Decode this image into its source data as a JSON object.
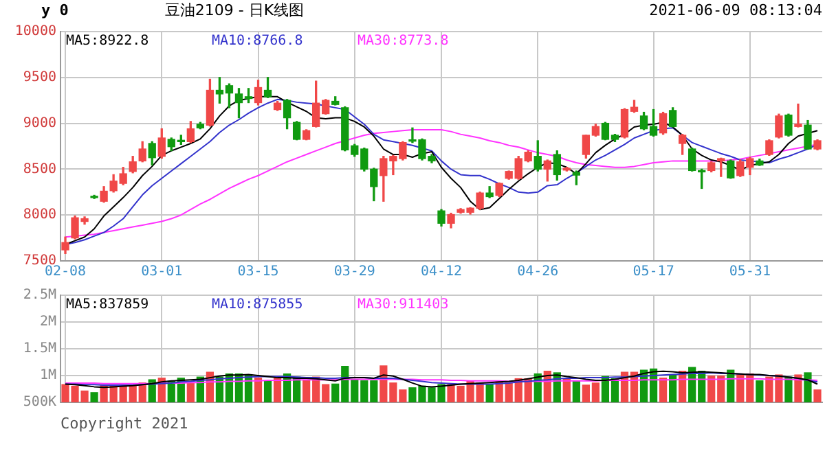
{
  "chart_data": [
    {
      "type": "candlestick",
      "title": "豆油2109 - 日K线图",
      "annotations": [
        "y 0",
        "2021-06-09 08:13:04"
      ],
      "categories": [
        "02-08",
        null,
        null,
        null,
        null,
        null,
        null,
        null,
        null,
        null,
        "03-01",
        null,
        null,
        null,
        null,
        null,
        null,
        null,
        null,
        null,
        "03-15",
        null,
        null,
        null,
        null,
        null,
        null,
        null,
        null,
        null,
        "03-29",
        null,
        null,
        null,
        null,
        null,
        null,
        null,
        null,
        "04-12",
        null,
        null,
        null,
        null,
        null,
        null,
        null,
        null,
        null,
        "04-26",
        null,
        null,
        null,
        null,
        null,
        null,
        null,
        null,
        null,
        null,
        null,
        "05-17",
        null,
        null,
        null,
        null,
        null,
        null,
        null,
        null,
        null,
        "05-31",
        null,
        null,
        null,
        null,
        null,
        null,
        null
      ],
      "ohlc": [
        [
          7620,
          7760,
          7580,
          7700
        ],
        [
          7750,
          7990,
          7740,
          7970
        ],
        [
          7930,
          7980,
          7900,
          7960
        ],
        [
          8200,
          8215,
          8180,
          8190
        ],
        [
          8150,
          8310,
          8140,
          8260
        ],
        [
          8265,
          8440,
          8250,
          8370
        ],
        [
          8345,
          8520,
          8330,
          8450
        ],
        [
          8475,
          8640,
          8460,
          8580
        ],
        [
          8590,
          8800,
          8580,
          8720
        ],
        [
          8780,
          8800,
          8545,
          8625
        ],
        [
          8640,
          8940,
          8620,
          8840
        ],
        [
          8825,
          8840,
          8700,
          8745
        ],
        [
          8815,
          8870,
          8770,
          8800
        ],
        [
          8800,
          9020,
          8790,
          8940
        ],
        [
          8990,
          9010,
          8940,
          8950
        ],
        [
          8980,
          9480,
          8970,
          9360
        ],
        [
          9360,
          9500,
          9220,
          9320
        ],
        [
          9410,
          9430,
          9170,
          9330
        ],
        [
          9320,
          9380,
          9060,
          9225
        ],
        [
          9290,
          9380,
          9225,
          9270
        ],
        [
          9225,
          9470,
          9200,
          9390
        ],
        [
          9360,
          9500,
          9280,
          9290
        ],
        [
          9150,
          9240,
          9140,
          9220
        ],
        [
          9250,
          9260,
          8940,
          9060
        ],
        [
          9010,
          9020,
          8820,
          8825
        ],
        [
          8825,
          8930,
          8820,
          8920
        ],
        [
          8965,
          9460,
          8960,
          9220
        ],
        [
          9105,
          9260,
          9100,
          9250
        ],
        [
          9240,
          9290,
          9200,
          9205
        ],
        [
          9170,
          9180,
          8700,
          8710
        ],
        [
          8755,
          8770,
          8640,
          8660
        ],
        [
          8720,
          8730,
          8480,
          8500
        ],
        [
          8500,
          8510,
          8155,
          8310
        ],
        [
          8430,
          8640,
          8150,
          8615
        ],
        [
          8590,
          8650,
          8440,
          8640
        ],
        [
          8615,
          8800,
          8600,
          8790
        ],
        [
          8820,
          8950,
          8790,
          8805
        ],
        [
          8820,
          8830,
          8600,
          8615
        ],
        [
          8640,
          8660,
          8570,
          8590
        ],
        [
          8045,
          8060,
          7880,
          7910
        ],
        [
          7910,
          8020,
          7860,
          8005
        ],
        [
          8030,
          8070,
          8020,
          8060
        ],
        [
          8030,
          8080,
          8010,
          8075
        ],
        [
          8075,
          8250,
          8060,
          8240
        ],
        [
          8240,
          8310,
          8190,
          8200
        ],
        [
          8215,
          8350,
          8200,
          8345
        ],
        [
          8400,
          8480,
          8390,
          8475
        ],
        [
          8400,
          8640,
          8390,
          8615
        ],
        [
          8590,
          8700,
          8580,
          8685
        ],
        [
          8640,
          8810,
          8480,
          8500
        ],
        [
          8500,
          8600,
          8370,
          8590
        ],
        [
          8660,
          8700,
          8380,
          8440
        ],
        [
          8490,
          8520,
          8480,
          8510
        ],
        [
          8465,
          8480,
          8330,
          8435
        ],
        [
          8660,
          8870,
          8620,
          8870
        ],
        [
          8870,
          8990,
          8860,
          8965
        ],
        [
          9000,
          9010,
          8820,
          8825
        ],
        [
          8870,
          8880,
          8800,
          8825
        ],
        [
          8850,
          9160,
          8840,
          9150
        ],
        [
          9130,
          9250,
          9120,
          9175
        ],
        [
          9080,
          9120,
          8930,
          8940
        ],
        [
          8965,
          9150,
          8860,
          8870
        ],
        [
          8895,
          9120,
          8880,
          9105
        ],
        [
          9140,
          9170,
          8960,
          8965
        ],
        [
          8780,
          8880,
          8660,
          8870
        ],
        [
          8720,
          8730,
          8480,
          8485
        ],
        [
          8475,
          8500,
          8290,
          8470
        ],
        [
          8485,
          8580,
          8470,
          8570
        ],
        [
          8590,
          8620,
          8420,
          8615
        ],
        [
          8590,
          8600,
          8400,
          8405
        ],
        [
          8430,
          8600,
          8420,
          8580
        ],
        [
          8520,
          8630,
          8440,
          8615
        ],
        [
          8590,
          8610,
          8540,
          8545
        ],
        [
          8660,
          8820,
          8650,
          8810
        ],
        [
          8850,
          9100,
          8840,
          9080
        ],
        [
          9090,
          9100,
          8860,
          8870
        ],
        [
          8965,
          9210,
          8960,
          8990
        ],
        [
          8980,
          9030,
          8720,
          8720
        ],
        [
          8720,
          8820,
          8710,
          8810
        ]
      ],
      "colors": [
        "#f04848",
        "#f04848",
        "#f04848",
        "#109a10",
        "#f04848",
        "#f04848",
        "#f04848",
        "#f04848",
        "#f04848",
        "#109a10",
        "#f04848",
        "#109a10",
        "#109a10",
        "#f04848",
        "#109a10",
        "#f04848",
        "#109a10",
        "#109a10",
        "#109a10",
        "#109a10",
        "#f04848",
        "#109a10",
        "#f04848",
        "#109a10",
        "#109a10",
        "#f04848",
        "#f04848",
        "#f04848",
        "#109a10",
        "#109a10",
        "#109a10",
        "#109a10",
        "#109a10",
        "#f04848",
        "#f04848",
        "#f04848",
        "#109a10",
        "#109a10",
        "#109a10",
        "#109a10",
        "#f04848",
        "#f04848",
        "#f04848",
        "#f04848",
        "#109a10",
        "#f04848",
        "#f04848",
        "#f04848",
        "#f04848",
        "#109a10",
        "#f04848",
        "#109a10",
        "#f04848",
        "#109a10",
        "#f04848",
        "#f04848",
        "#109a10",
        "#109a10",
        "#f04848",
        "#f04848",
        "#109a10",
        "#109a10",
        "#f04848",
        "#109a10",
        "#f04848",
        "#109a10",
        "#109a10",
        "#f04848",
        "#f04848",
        "#109a10",
        "#f04848",
        "#f04848",
        "#109a10",
        "#f04848",
        "#f04848",
        "#109a10",
        "#f04848",
        "#109a10",
        "#f04848"
      ],
      "series": [
        {
          "type": "line",
          "name": "MA5:8922.8",
          "color": "#000000",
          "values": [
            7680,
            7720,
            7760,
            7850,
            7990,
            8090,
            8190,
            8300,
            8430,
            8530,
            8650,
            8700,
            8740,
            8780,
            8830,
            8940,
            9080,
            9190,
            9250,
            9270,
            9290,
            9290,
            9290,
            9230,
            9180,
            9130,
            9060,
            9050,
            9060,
            9060,
            9020,
            8960,
            8860,
            8720,
            8660,
            8660,
            8630,
            8670,
            8690,
            8520,
            8400,
            8300,
            8150,
            8060,
            8080,
            8180,
            8280,
            8370,
            8450,
            8520,
            8570,
            8560,
            8520,
            8450,
            8560,
            8680,
            8760,
            8830,
            8880,
            8960,
            8980,
            8990,
            9010,
            8960,
            8870,
            8720,
            8650,
            8600,
            8580,
            8540,
            8490,
            8540,
            8560,
            8580,
            8660,
            8780,
            8860,
            8890,
            8920
          ]
        },
        {
          "type": "line",
          "name": "MA10:8766.8",
          "color": "#3333cc",
          "values": [
            7680,
            7700,
            7730,
            7770,
            7810,
            7880,
            7960,
            8090,
            8220,
            8320,
            8400,
            8480,
            8560,
            8640,
            8720,
            8800,
            8900,
            8980,
            9040,
            9110,
            9170,
            9220,
            9260,
            9250,
            9230,
            9220,
            9210,
            9190,
            9170,
            9150,
            9070,
            8990,
            8880,
            8820,
            8800,
            8780,
            8760,
            8730,
            8700,
            8590,
            8500,
            8440,
            8430,
            8430,
            8390,
            8340,
            8300,
            8250,
            8240,
            8250,
            8320,
            8330,
            8400,
            8460,
            8530,
            8600,
            8650,
            8710,
            8770,
            8840,
            8880,
            8920,
            8940,
            8950,
            8870,
            8790,
            8750,
            8710,
            8670,
            8640,
            8600,
            8590,
            8580,
            8570,
            8610,
            8640,
            8680,
            8720,
            8770
          ]
        },
        {
          "type": "line",
          "name": "MA30:8773.8",
          "color": "#ff33ff",
          "values": [
            7760,
            7770,
            7780,
            7790,
            7810,
            7830,
            7850,
            7870,
            7890,
            7910,
            7930,
            7960,
            8000,
            8060,
            8120,
            8170,
            8230,
            8290,
            8340,
            8390,
            8430,
            8480,
            8530,
            8580,
            8620,
            8660,
            8700,
            8740,
            8780,
            8810,
            8840,
            8870,
            8890,
            8900,
            8910,
            8920,
            8930,
            8930,
            8930,
            8930,
            8910,
            8880,
            8860,
            8840,
            8810,
            8790,
            8760,
            8740,
            8710,
            8680,
            8660,
            8640,
            8600,
            8570,
            8550,
            8540,
            8530,
            8520,
            8520,
            8530,
            8550,
            8570,
            8580,
            8590,
            8590,
            8590,
            8590,
            8590,
            8590,
            8600,
            8610,
            8630,
            8650,
            8670,
            8690,
            8710,
            8730,
            8750,
            8770
          ]
        }
      ],
      "ylim": [
        7500,
        10000
      ],
      "yticks": [
        7500,
        8000,
        8500,
        9000,
        9500,
        10000
      ],
      "grid": true
    },
    {
      "type": "bar",
      "annotations": [
        "Copyright 2021"
      ],
      "categories": [
        null,
        null,
        null,
        null,
        null,
        null,
        null,
        null,
        null,
        null,
        null,
        null,
        null,
        null,
        null,
        null,
        null,
        null,
        null,
        null,
        null,
        null,
        null,
        null,
        null,
        null,
        null,
        null,
        null,
        null,
        null,
        null,
        null,
        null,
        null,
        null,
        null,
        null,
        null,
        null,
        null,
        null,
        null,
        null,
        null,
        null,
        null,
        null,
        null,
        null,
        null,
        null,
        null,
        null,
        null,
        null,
        null,
        null,
        null,
        null,
        null,
        null,
        null,
        null,
        null,
        null,
        null,
        null,
        null,
        null,
        null,
        null,
        null,
        null,
        null,
        null,
        null,
        null,
        null
      ],
      "series": [
        {
          "colors": [
            "#f04848",
            "#f04848",
            "#f04848",
            "#109a10",
            "#f04848",
            "#f04848",
            "#f04848",
            "#f04848",
            "#f04848",
            "#109a10",
            "#f04848",
            "#109a10",
            "#109a10",
            "#f04848",
            "#109a10",
            "#f04848",
            "#109a10",
            "#109a10",
            "#109a10",
            "#109a10",
            "#f04848",
            "#109a10",
            "#f04848",
            "#109a10",
            "#109a10",
            "#f04848",
            "#f04848",
            "#f04848",
            "#109a10",
            "#109a10",
            "#109a10",
            "#109a10",
            "#109a10",
            "#f04848",
            "#f04848",
            "#f04848",
            "#109a10",
            "#109a10",
            "#109a10",
            "#109a10",
            "#f04848",
            "#f04848",
            "#f04848",
            "#f04848",
            "#109a10",
            "#f04848",
            "#f04848",
            "#f04848",
            "#f04848",
            "#109a10",
            "#f04848",
            "#109a10",
            "#f04848",
            "#109a10",
            "#f04848",
            "#f04848",
            "#109a10",
            "#109a10",
            "#f04848",
            "#f04848",
            "#109a10",
            "#109a10",
            "#f04848",
            "#109a10",
            "#f04848",
            "#109a10",
            "#109a10",
            "#f04848",
            "#f04848",
            "#109a10",
            "#f04848",
            "#f04848",
            "#109a10",
            "#f04848",
            "#f04848",
            "#109a10",
            "#f04848",
            "#109a10",
            "#f04848"
          ],
          "values": [
            840000,
            810000,
            720000,
            690000,
            830000,
            830000,
            810000,
            830000,
            870000,
            930000,
            960000,
            900000,
            960000,
            870000,
            980000,
            1070000,
            980000,
            1040000,
            1040000,
            1020000,
            960000,
            910000,
            960000,
            1040000,
            980000,
            910000,
            980000,
            840000,
            850000,
            1180000,
            930000,
            910000,
            910000,
            1190000,
            870000,
            740000,
            780000,
            810000,
            780000,
            840000,
            840000,
            810000,
            910000,
            870000,
            840000,
            910000,
            870000,
            950000,
            950000,
            1040000,
            1090000,
            1060000,
            950000,
            900000,
            830000,
            870000,
            990000,
            950000,
            1070000,
            1070000,
            1110000,
            1130000,
            960000,
            1020000,
            1090000,
            1160000,
            1090000,
            1000000,
            1000000,
            1110000,
            1040000,
            1040000,
            910000,
            980000,
            1020000,
            980000,
            1020000,
            1060000,
            740000
          ]
        },
        {
          "type": "line",
          "name": "MA5:837859",
          "color": "#000000",
          "values": [
            840000,
            830000,
            810000,
            790000,
            780000,
            790000,
            800000,
            810000,
            830000,
            850000,
            880000,
            900000,
            910000,
            920000,
            930000,
            960000,
            990000,
            1010000,
            1010000,
            1020000,
            1000000,
            980000,
            960000,
            960000,
            950000,
            950000,
            940000,
            920000,
            900000,
            950000,
            960000,
            960000,
            950000,
            1010000,
            990000,
            930000,
            860000,
            800000,
            790000,
            800000,
            820000,
            840000,
            850000,
            860000,
            870000,
            880000,
            890000,
            910000,
            940000,
            970000,
            1000000,
            1010000,
            980000,
            960000,
            930000,
            910000,
            910000,
            930000,
            960000,
            990000,
            1040000,
            1070000,
            1080000,
            1070000,
            1050000,
            1060000,
            1070000,
            1060000,
            1050000,
            1040000,
            1030000,
            1020000,
            1020000,
            1000000,
            990000,
            970000,
            950000,
            920000,
            840000
          ]
        },
        {
          "type": "line",
          "name": "MA10:875855",
          "color": "#3333cc",
          "values": [
            840000,
            840000,
            830000,
            830000,
            820000,
            820000,
            820000,
            820000,
            830000,
            840000,
            850000,
            860000,
            880000,
            890000,
            910000,
            920000,
            940000,
            950000,
            960000,
            970000,
            980000,
            980000,
            980000,
            980000,
            970000,
            960000,
            960000,
            950000,
            950000,
            960000,
            960000,
            960000,
            950000,
            950000,
            950000,
            930000,
            910000,
            890000,
            870000,
            860000,
            850000,
            840000,
            840000,
            840000,
            840000,
            850000,
            860000,
            880000,
            890000,
            910000,
            920000,
            940000,
            950000,
            950000,
            960000,
            960000,
            960000,
            970000,
            970000,
            980000,
            990000,
            1000000,
            1010000,
            1020000,
            1030000,
            1040000,
            1040000,
            1050000,
            1040000,
            1040000,
            1030000,
            1020000,
            1010000,
            1000000,
            990000,
            970000,
            950000,
            910000,
            880000
          ]
        },
        {
          "type": "line",
          "name": "MA30:911403",
          "color": "#ff33ff",
          "values": [
            860000,
            860000,
            860000,
            860000,
            850000,
            850000,
            850000,
            850000,
            850000,
            850000,
            860000,
            860000,
            860000,
            870000,
            870000,
            880000,
            880000,
            890000,
            890000,
            900000,
            900000,
            910000,
            910000,
            910000,
            920000,
            920000,
            920000,
            920000,
            920000,
            930000,
            930000,
            930000,
            930000,
            930000,
            930000,
            930000,
            930000,
            920000,
            920000,
            920000,
            910000,
            910000,
            900000,
            900000,
            900000,
            900000,
            890000,
            890000,
            890000,
            890000,
            890000,
            900000,
            900000,
            900000,
            900000,
            900000,
            910000,
            910000,
            910000,
            910000,
            920000,
            920000,
            920000,
            920000,
            930000,
            930000,
            930000,
            930000,
            930000,
            940000,
            940000,
            940000,
            940000,
            930000,
            930000,
            930000,
            920000,
            920000,
            910000
          ]
        }
      ],
      "ylim": [
        500000,
        2500000
      ],
      "yticks": [
        {
          "value": 500000,
          "label": "500K"
        },
        {
          "value": 1000000,
          "label": "1M"
        },
        {
          "value": 1500000,
          "label": "1.5M"
        },
        {
          "value": 2000000,
          "label": "2M"
        },
        {
          "value": 2500000,
          "label": "2.5M"
        }
      ],
      "grid": true,
      "tick_labels": "y"
    }
  ]
}
